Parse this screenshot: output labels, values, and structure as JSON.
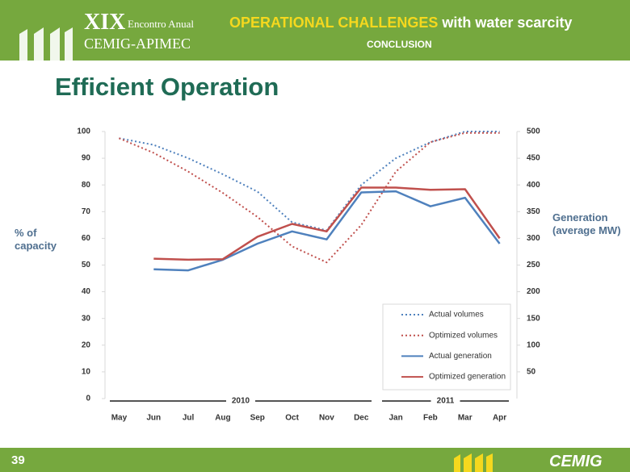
{
  "header": {
    "event_numeral": "XIX",
    "event_line1": "Encontro Anual",
    "event_line2": "CEMIG-APIMEC",
    "title_highlight": "OPERATIONAL CHALLENGES",
    "title_rest": "with water scarcity",
    "section": "CONCLUSION"
  },
  "slide_title": "Efficient Operation",
  "footer": {
    "page": "39",
    "logo": "CEMIG"
  },
  "chart_data": {
    "type": "line",
    "y_label": "% of capacity",
    "y2_label": "Generation (average MW)",
    "categories": [
      "May",
      "Jun",
      "Jul",
      "Aug",
      "Sep",
      "Oct",
      "Nov",
      "Dec",
      "Jan",
      "Feb",
      "Mar",
      "Apr"
    ],
    "year_labels": [
      "2010",
      "2011"
    ],
    "ylim": [
      0,
      100
    ],
    "yticks": [
      0,
      10,
      20,
      30,
      40,
      50,
      60,
      70,
      80,
      90,
      100
    ],
    "y2lim": [
      0,
      500
    ],
    "y2ticks": [
      50,
      100,
      150,
      200,
      250,
      300,
      350,
      400,
      450,
      500
    ],
    "legend": "lower right",
    "series": [
      {
        "name": "Actual volumes",
        "color": "#4f81bd",
        "style": "dotted",
        "values": [
          97.5,
          95,
          90,
          84,
          77.5,
          66,
          63,
          80,
          90,
          96,
          100,
          100
        ]
      },
      {
        "name": "Optimized volumes",
        "color": "#c0504d",
        "style": "dotted",
        "values": [
          97.5,
          92,
          85,
          77,
          68,
          57,
          51,
          65,
          85,
          96,
          99.5,
          99.5
        ]
      },
      {
        "name": "Actual generation",
        "color": "#4f81bd",
        "style": "solid",
        "axis": "y2",
        "values": [
          null,
          242,
          240,
          260,
          290,
          313,
          298,
          386,
          388,
          360,
          376,
          290
        ]
      },
      {
        "name": "Optimized generation",
        "color": "#c0504d",
        "style": "solid",
        "axis": "y2",
        "values": [
          null,
          262,
          260,
          261,
          303,
          327,
          313,
          395,
          395,
          391,
          392,
          300
        ]
      }
    ]
  }
}
